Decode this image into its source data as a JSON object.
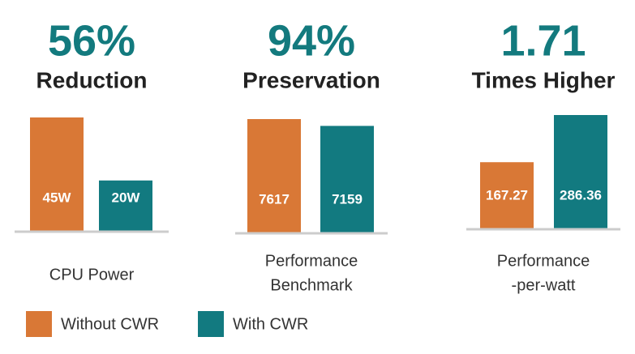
{
  "chart_data": [
    {
      "type": "bar",
      "headline": "56%",
      "title": "Reduction",
      "label": [
        "CPU Power"
      ],
      "values": [
        45,
        20
      ],
      "value_labels": [
        "45W",
        "20W"
      ]
    },
    {
      "type": "bar",
      "headline": "94%",
      "title": "Preservation",
      "label": [
        "Performance",
        "Benchmark"
      ],
      "values": [
        7617,
        7159
      ],
      "value_labels": [
        "7617",
        "7159"
      ]
    },
    {
      "type": "bar",
      "headline": "1.71",
      "title": "Times Higher",
      "label": [
        "Performance",
        "-per-watt"
      ],
      "values": [
        167.27,
        286.36
      ],
      "value_labels": [
        "167.27",
        "286.36"
      ]
    }
  ],
  "legend": [
    {
      "name": "Without CWR",
      "color": "#d97836"
    },
    {
      "name": "With CWR",
      "color": "#127a80"
    }
  ]
}
